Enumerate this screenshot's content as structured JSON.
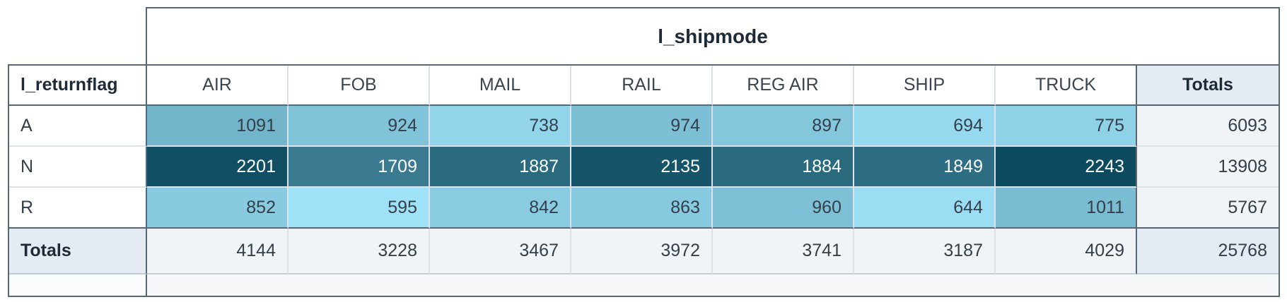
{
  "chart_data": {
    "type": "heatmap",
    "title": "l_shipmode",
    "row_dimension_label": "l_returnflag",
    "totals_column_label": "Totals",
    "columns": [
      "AIR",
      "FOB",
      "MAIL",
      "RAIL",
      "REG AIR",
      "SHIP",
      "TRUCK"
    ],
    "rows": [
      {
        "label": "A",
        "values": [
          1091,
          924,
          738,
          974,
          897,
          694,
          775
        ],
        "total": 6093
      },
      {
        "label": "N",
        "values": [
          2201,
          1709,
          1887,
          2135,
          1884,
          1849,
          2243
        ],
        "total": 13908
      },
      {
        "label": "R",
        "values": [
          852,
          595,
          842,
          863,
          960,
          644,
          1011
        ],
        "total": 5767
      }
    ],
    "totals": {
      "label": "Totals",
      "column_totals": [
        4144,
        3228,
        3467,
        3972,
        3741,
        3187,
        4029
      ],
      "grand_total": 25768
    },
    "heatmap": {
      "value_range": [
        595,
        2243
      ],
      "min_color": "#9FE2F8",
      "max_color": "#0B4A5F",
      "dark_text": "#333F4B",
      "light_text": "#FFFFFF",
      "light_text_threshold": 0.5
    },
    "layout": {
      "legend": "none",
      "grid": "table",
      "value_alignment": "right"
    }
  },
  "ui_colors": {
    "frame_border": "#566877",
    "grid_line": "#dbe2e8",
    "totals_row_divider": "#c3ccd4",
    "totals_header_bg": "#e4ebf2",
    "totals_cell_bg": "#f0f4f7",
    "footer_bg": "#f6f8fa"
  }
}
